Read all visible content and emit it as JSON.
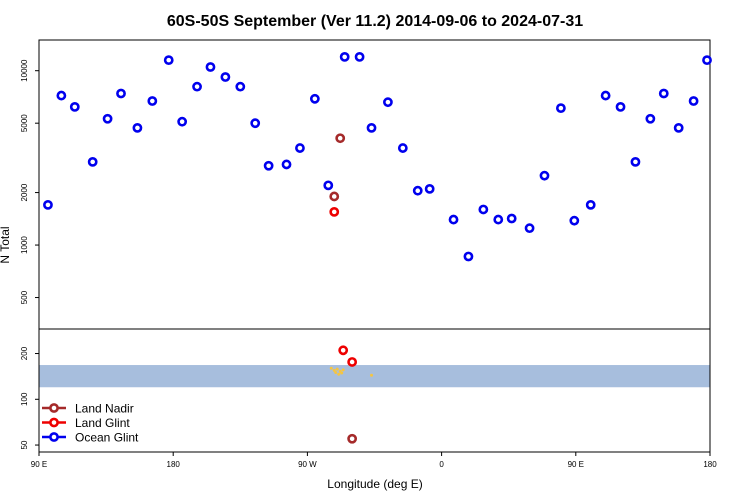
{
  "chart_data": {
    "type": "scatter",
    "title": "60S-50S September (Ver 11.2)   2014-09-06 to 2024-07-31",
    "xlabel": "Longitude (deg E)",
    "ylabel": "N Total",
    "x_ticks": [
      {
        "value": 90,
        "label": "90 E"
      },
      {
        "value": 180,
        "label": "180"
      },
      {
        "value": 270,
        "label": "90 W"
      },
      {
        "value": 360,
        "label": "0"
      },
      {
        "value": 450,
        "label": "90 E"
      },
      {
        "value": 540,
        "label": "180"
      }
    ],
    "xlim": [
      90,
      540
    ],
    "top_panel": {
      "y_scale": "log",
      "ylim": [
        330,
        15000
      ],
      "y_ticks": [
        {
          "value": 500,
          "label": "500"
        },
        {
          "value": 1000,
          "label": "1000"
        },
        {
          "value": 2000,
          "label": "2000"
        },
        {
          "value": 5000,
          "label": "5000"
        },
        {
          "value": 10000,
          "label": "10000"
        }
      ],
      "series": [
        {
          "name": "Ocean Glint",
          "color": "#0000ee",
          "points": [
            [
              96,
              1700
            ],
            [
              105,
              7200
            ],
            [
              114,
              6200
            ],
            [
              126,
              3000
            ],
            [
              136,
              5300
            ],
            [
              145,
              7400
            ],
            [
              156,
              4700
            ],
            [
              166,
              6700
            ],
            [
              177,
              11500
            ],
            [
              186,
              5100
            ],
            [
              196,
              8100
            ],
            [
              205,
              10500
            ],
            [
              215,
              9200
            ],
            [
              225,
              8100
            ],
            [
              235,
              5000
            ],
            [
              244,
              2850
            ],
            [
              256,
              2900
            ],
            [
              265,
              3600
            ],
            [
              275,
              6900
            ],
            [
              284,
              2200
            ],
            [
              295,
              12000
            ],
            [
              305,
              12000
            ],
            [
              313,
              4700
            ],
            [
              324,
              6600
            ],
            [
              334,
              3600
            ],
            [
              344,
              2050
            ],
            [
              352,
              2100
            ],
            [
              368,
              1400
            ],
            [
              378,
              860
            ],
            [
              388,
              1600
            ],
            [
              398,
              1400
            ],
            [
              407,
              1420
            ],
            [
              419,
              1250
            ],
            [
              429,
              2500
            ],
            [
              440,
              6100
            ],
            [
              449,
              1380
            ],
            [
              460,
              1700
            ],
            [
              470,
              7200
            ],
            [
              480,
              6200
            ],
            [
              490,
              3000
            ],
            [
              500,
              5300
            ],
            [
              509,
              7400
            ],
            [
              519,
              4700
            ],
            [
              529,
              6700
            ],
            [
              538,
              11500
            ]
          ]
        },
        {
          "name": "Land Nadir",
          "color": "#a52a2a",
          "points": [
            [
              292,
              4100
            ],
            [
              288,
              1900
            ]
          ]
        },
        {
          "name": "Land Glint",
          "color": "#ee0000",
          "points": [
            [
              288,
              1550
            ]
          ]
        }
      ]
    },
    "bottom_panel": {
      "y_scale": "log",
      "ylim": [
        45,
        290
      ],
      "y_ticks": [
        {
          "value": 50,
          "label": "50"
        },
        {
          "value": 100,
          "label": "100"
        },
        {
          "value": 200,
          "label": "200"
        }
      ],
      "band": {
        "range": [
          120,
          168
        ],
        "color": "#a7bedd"
      },
      "series": [
        {
          "name": "Land Glint",
          "color": "#ee0000",
          "points": [
            [
              294,
              210
            ],
            [
              300,
              176
            ]
          ]
        },
        {
          "name": "Land Nadir",
          "color": "#a52a2a",
          "points": [
            [
              300,
              55
            ]
          ]
        }
      ],
      "small_marks": {
        "color": "#f5c542",
        "points": [
          [
            286,
            160
          ],
          [
            288,
            155
          ],
          [
            289,
            150
          ],
          [
            290,
            158
          ],
          [
            291,
            146
          ],
          [
            292,
            153
          ],
          [
            293,
            149
          ],
          [
            294,
            156
          ],
          [
            313,
            144
          ]
        ]
      }
    },
    "legend": {
      "position": "bottom-left",
      "entries": [
        {
          "label": "Land Nadir",
          "color": "#a52a2a"
        },
        {
          "label": "Land Glint",
          "color": "#ee0000"
        },
        {
          "label": "Ocean Glint",
          "color": "#0000ee"
        }
      ]
    }
  }
}
